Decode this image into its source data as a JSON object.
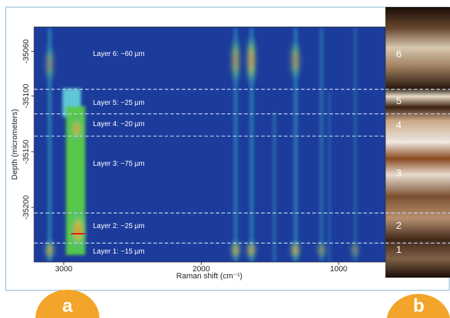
{
  "figure": {
    "panel_a": {
      "label": "a",
      "x_axis_title": "Raman shift (cm⁻¹)",
      "y_axis_title": "Depth (micrometers)",
      "xlim": [
        3216,
        660
      ],
      "ylim": [
        -35249,
        -35038
      ],
      "xticks": [
        3000,
        2000,
        1000
      ],
      "yticks": [
        -35060,
        -35100,
        -35150,
        -35200
      ],
      "layer_boundaries": [
        -35094,
        -35116,
        -35136,
        -35205,
        -35232
      ],
      "layer_labels": [
        "Layer 6: ~60 µm",
        "Layer 5: ~25 µm",
        "Layer 4: ~20 µm",
        "Layer 3: ~75 µm",
        "Layer 2: ~25 µm",
        "Layer 1: ~15 µm"
      ]
    },
    "panel_b": {
      "label": "b",
      "layer_numbers": [
        "6",
        "5",
        "4",
        "3",
        "2",
        "1"
      ]
    }
  }
}
